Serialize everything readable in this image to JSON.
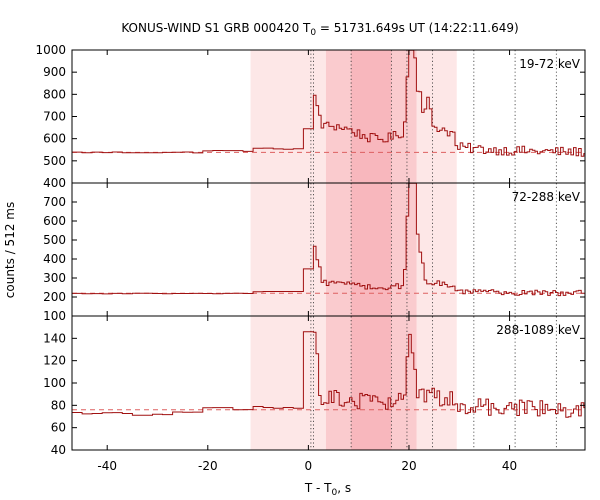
{
  "chart_data": {
    "type": "line",
    "title": "KONUS-WIND S1 GRB 000420 T",
    "title_sub": "0",
    "title_rest": " = 51731.649s UT (14:22:11.649)",
    "xlabel": "T - T",
    "xlabel_sub": "0",
    "xlabel_rest": ", s",
    "ylabel": "counts / 512 ms",
    "xlim": [
      -47,
      55
    ],
    "xticks": [
      -40,
      -20,
      0,
      20,
      40
    ],
    "bin_width": 0.512,
    "shaded_regions": [
      {
        "from": -11.5,
        "to": 29.5,
        "shade": "light"
      },
      {
        "from": 3.5,
        "to": 21.5,
        "shade": "medium"
      },
      {
        "from": 8.5,
        "to": 16.5,
        "shade": "medium"
      }
    ],
    "vertical_markers": [
      0.5,
      1.0,
      8.5,
      16.5,
      19.6,
      24.7,
      32.9,
      41.1,
      49.3
    ],
    "series_color": "#a01010",
    "background_color": "#dd6060",
    "panels": [
      {
        "label": "19-72 keV",
        "ylim": [
          400,
          1000
        ],
        "yticks": [
          400,
          500,
          600,
          700,
          800,
          900,
          1000
        ],
        "background": 538,
        "segments": [
          [
            -47,
            -20,
            538
          ],
          [
            -20,
            -11,
            545
          ],
          [
            -11,
            0,
            555
          ]
        ],
        "peaks": [
          {
            "t": 0.5,
            "amp": 140
          },
          {
            "t": 1.3,
            "amp": 100
          },
          {
            "t": 2.0,
            "amp": 60
          },
          {
            "t": 20.0,
            "amp": 270
          },
          {
            "t": 20.6,
            "amp": 380
          },
          {
            "t": 21.3,
            "amp": 200
          },
          {
            "t": 22.3,
            "amp": 140
          },
          {
            "t": 23.8,
            "amp": 120
          }
        ],
        "plateau": [
          0,
          29,
          120
        ],
        "tail": [
          29,
          55,
          25
        ],
        "noise": 22
      },
      {
        "label": "72-288 keV",
        "ylim": [
          100,
          800
        ],
        "yticks": [
          100,
          200,
          300,
          400,
          500,
          600,
          700
        ],
        "background": 220,
        "segments": [
          [
            -47,
            -11,
            218
          ],
          [
            -11,
            0,
            228
          ]
        ],
        "peaks": [
          {
            "t": 0.5,
            "amp": 220
          },
          {
            "t": 1.2,
            "amp": 140
          },
          {
            "t": 2.0,
            "amp": 90
          },
          {
            "t": 19.8,
            "amp": 220
          },
          {
            "t": 20.3,
            "amp": 380
          },
          {
            "t": 20.8,
            "amp": 510
          },
          {
            "t": 21.4,
            "amp": 260
          },
          {
            "t": 22.4,
            "amp": 130
          }
        ],
        "plateau": [
          0,
          29,
          55
        ],
        "tail": [
          29,
          55,
          10
        ],
        "noise": 14
      },
      {
        "label": "288-1089 keV",
        "ylim": [
          40,
          160
        ],
        "yticks": [
          40,
          60,
          80,
          100,
          120,
          140
        ],
        "background": 76,
        "segments": [
          [
            -47,
            -35,
            73
          ],
          [
            -35,
            -27,
            71
          ],
          [
            -27,
            -20,
            74
          ],
          [
            -20,
            -11,
            77
          ],
          [
            -11,
            0,
            78
          ]
        ],
        "peaks": [
          {
            "t": 0.3,
            "amp": 73
          },
          {
            "t": 0.8,
            "amp": 55
          },
          {
            "t": 1.5,
            "amp": 35
          },
          {
            "t": 20.0,
            "amp": 45
          },
          {
            "t": 20.8,
            "amp": 30
          }
        ],
        "plateau": [
          0,
          29,
          12
        ],
        "tail": [
          29,
          55,
          4
        ],
        "noise": 8
      }
    ]
  }
}
